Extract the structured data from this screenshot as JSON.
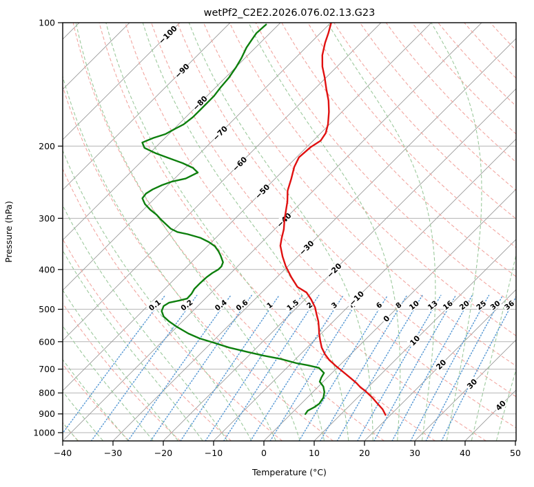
{
  "title": "wetPf2_C2E2.2026.076.02.13.G23",
  "axes": {
    "xlabel": "Temperature (°C)",
    "ylabel": "Pressure (hPa)",
    "x_ticks": [
      -40,
      -30,
      -20,
      -10,
      0,
      10,
      20,
      30,
      40,
      50
    ],
    "y_ticks": [
      100,
      200,
      300,
      400,
      500,
      600,
      700,
      800,
      900,
      1000
    ]
  },
  "colors": {
    "temperature": "#e01010",
    "dewpoint": "#0d7f0d",
    "isotherm": "#999999",
    "gridline": "#b3b3b3",
    "dry_adiabat": "#f2a6a0",
    "moist_adiabat": "#9cc99c",
    "mixing_line": "#5b9bd5",
    "mixing_label": "#1f77b4",
    "iso_label_cold": "#1f77b4",
    "iso_label_zero": "#7f7f7f",
    "iso_label_warm": "#d62728",
    "spine": "#000000"
  },
  "chart_data": {
    "type": "line",
    "title": "wetPf2_C2E2.2026.076.02.13.G23",
    "xlabel": "Temperature (°C)",
    "ylabel": "Pressure (hPa)",
    "xlim": [
      -40,
      50
    ],
    "ylim_hpa": [
      1050,
      100
    ],
    "y_scale": "log",
    "skew_rotation_deg": 45,
    "grid": true,
    "series": [
      {
        "name": "temperature",
        "units": [
          "degC",
          "hPa"
        ],
        "points": [
          [
            -69.9,
            100
          ],
          [
            -68.4,
            106
          ],
          [
            -67.1,
            112
          ],
          [
            -65.2,
            120
          ],
          [
            -62.9,
            128
          ],
          [
            -60.3,
            136
          ],
          [
            -57.7,
            145
          ],
          [
            -54.9,
            155
          ],
          [
            -52.6,
            165
          ],
          [
            -50.3,
            177
          ],
          [
            -49.0,
            186
          ],
          [
            -48.5,
            194
          ],
          [
            -49.2,
            201
          ],
          [
            -49.5,
            213
          ],
          [
            -48.5,
            225
          ],
          [
            -46.8,
            240
          ],
          [
            -45.1,
            257
          ],
          [
            -43.0,
            273
          ],
          [
            -41.0,
            292
          ],
          [
            -40.1,
            301
          ],
          [
            -38.2,
            319
          ],
          [
            -36.8,
            336
          ],
          [
            -35.6,
            350
          ],
          [
            -33.0,
            372
          ],
          [
            -30.4,
            393
          ],
          [
            -27.1,
            418
          ],
          [
            -24.0,
            441
          ],
          [
            -21.1,
            455
          ],
          [
            -18.8,
            473
          ],
          [
            -16.4,
            495
          ],
          [
            -14.7,
            515
          ],
          [
            -13.0,
            535
          ],
          [
            -11.8,
            552
          ],
          [
            -10.4,
            573
          ],
          [
            -8.8,
            596
          ],
          [
            -7.1,
            620
          ],
          [
            -5.1,
            644
          ],
          [
            -3.2,
            664
          ],
          [
            -0.7,
            687
          ],
          [
            1.8,
            709
          ],
          [
            4.2,
            731
          ],
          [
            6.9,
            757
          ],
          [
            8.5,
            775
          ],
          [
            10.1,
            790
          ],
          [
            12.9,
            821
          ],
          [
            15.2,
            850
          ],
          [
            17.3,
            877
          ],
          [
            19.0,
            905
          ]
        ]
      },
      {
        "name": "dewpoint",
        "units": [
          "degC",
          "hPa"
        ],
        "points": [
          [
            -82.5,
            101
          ],
          [
            -82.7,
            106
          ],
          [
            -82.3,
            110
          ],
          [
            -81.8,
            115
          ],
          [
            -80.7,
            122
          ],
          [
            -80.0,
            128
          ],
          [
            -79.3,
            136
          ],
          [
            -79.0,
            144
          ],
          [
            -78.6,
            151
          ],
          [
            -78.6,
            163
          ],
          [
            -78.6,
            170
          ],
          [
            -79.0,
            177
          ],
          [
            -79.9,
            182
          ],
          [
            -80.7,
            187
          ],
          [
            -82.3,
            191
          ],
          [
            -83.6,
            196
          ],
          [
            -82.1,
            202
          ],
          [
            -78.9,
            208
          ],
          [
            -75.2,
            214
          ],
          [
            -71.5,
            220
          ],
          [
            -68.5,
            226
          ],
          [
            -66.6,
            232
          ],
          [
            -67.8,
            240
          ],
          [
            -69.9,
            244
          ],
          [
            -71.2,
            249
          ],
          [
            -72.2,
            255
          ],
          [
            -72.7,
            261
          ],
          [
            -72.5,
            268
          ],
          [
            -70.8,
            277
          ],
          [
            -68.6,
            286
          ],
          [
            -66.4,
            294
          ],
          [
            -64.8,
            301
          ],
          [
            -62.9,
            309
          ],
          [
            -60.8,
            318
          ],
          [
            -58.8,
            324
          ],
          [
            -56.3,
            328
          ],
          [
            -53.0,
            335
          ],
          [
            -50.5,
            343
          ],
          [
            -48.5,
            351
          ],
          [
            -46.8,
            361
          ],
          [
            -45.5,
            370
          ],
          [
            -43.7,
            384
          ],
          [
            -43.2,
            393
          ],
          [
            -43.2,
            400
          ],
          [
            -43.7,
            408
          ],
          [
            -44.0,
            418
          ],
          [
            -44.1,
            432
          ],
          [
            -44.1,
            446
          ],
          [
            -43.7,
            458
          ],
          [
            -43.6,
            471
          ],
          [
            -44.8,
            476
          ],
          [
            -46.4,
            482
          ],
          [
            -46.8,
            491
          ],
          [
            -46.2,
            505
          ],
          [
            -44.7,
            521
          ],
          [
            -42.7,
            535
          ],
          [
            -40.0,
            552
          ],
          [
            -36.4,
            573
          ],
          [
            -33.2,
            589
          ],
          [
            -29.6,
            603
          ],
          [
            -25.5,
            620
          ],
          [
            -20.8,
            636
          ],
          [
            -17.0,
            649
          ],
          [
            -13.0,
            661
          ],
          [
            -9.0,
            677
          ],
          [
            -6.3,
            685
          ],
          [
            -3.6,
            695
          ],
          [
            -1.6,
            715
          ],
          [
            -1.2,
            734
          ],
          [
            -0.7,
            751
          ],
          [
            1.0,
            772
          ],
          [
            2.3,
            796
          ],
          [
            3.2,
            821
          ],
          [
            3.6,
            850
          ],
          [
            3.3,
            867
          ],
          [
            2.7,
            884
          ],
          [
            2.9,
            901
          ]
        ]
      }
    ],
    "isotherms_degC": {
      "start": -120,
      "end": 50,
      "step": 10
    },
    "isotherm_labels": [
      {
        "value": -100,
        "p": 107
      },
      {
        "value": -90,
        "p": 131
      },
      {
        "value": -80,
        "p": 157
      },
      {
        "value": -70,
        "p": 186
      },
      {
        "value": -60,
        "p": 221
      },
      {
        "value": -50,
        "p": 258
      },
      {
        "value": -40,
        "p": 303
      },
      {
        "value": -30,
        "p": 354
      },
      {
        "value": -20,
        "p": 402
      },
      {
        "value": -10,
        "p": 470
      },
      {
        "value": 0,
        "p": 527
      },
      {
        "value": 10,
        "p": 596
      },
      {
        "value": 20,
        "p": 682
      },
      {
        "value": 30,
        "p": 760
      },
      {
        "value": 40,
        "p": 858
      }
    ],
    "dry_adiabats_degC": {
      "start": -40,
      "end": 200,
      "step": 10
    },
    "moist_adiabats_degC": {
      "start": -40,
      "end": 45,
      "step": 5
    },
    "mixing_ratio_lines_g_per_kg": [
      0.1,
      0.2,
      0.4,
      0.6,
      1,
      1.5,
      2,
      3,
      4,
      6,
      8,
      10,
      13,
      16,
      20,
      25,
      30,
      36
    ],
    "mixing_label_pressure_hpa": 500
  }
}
